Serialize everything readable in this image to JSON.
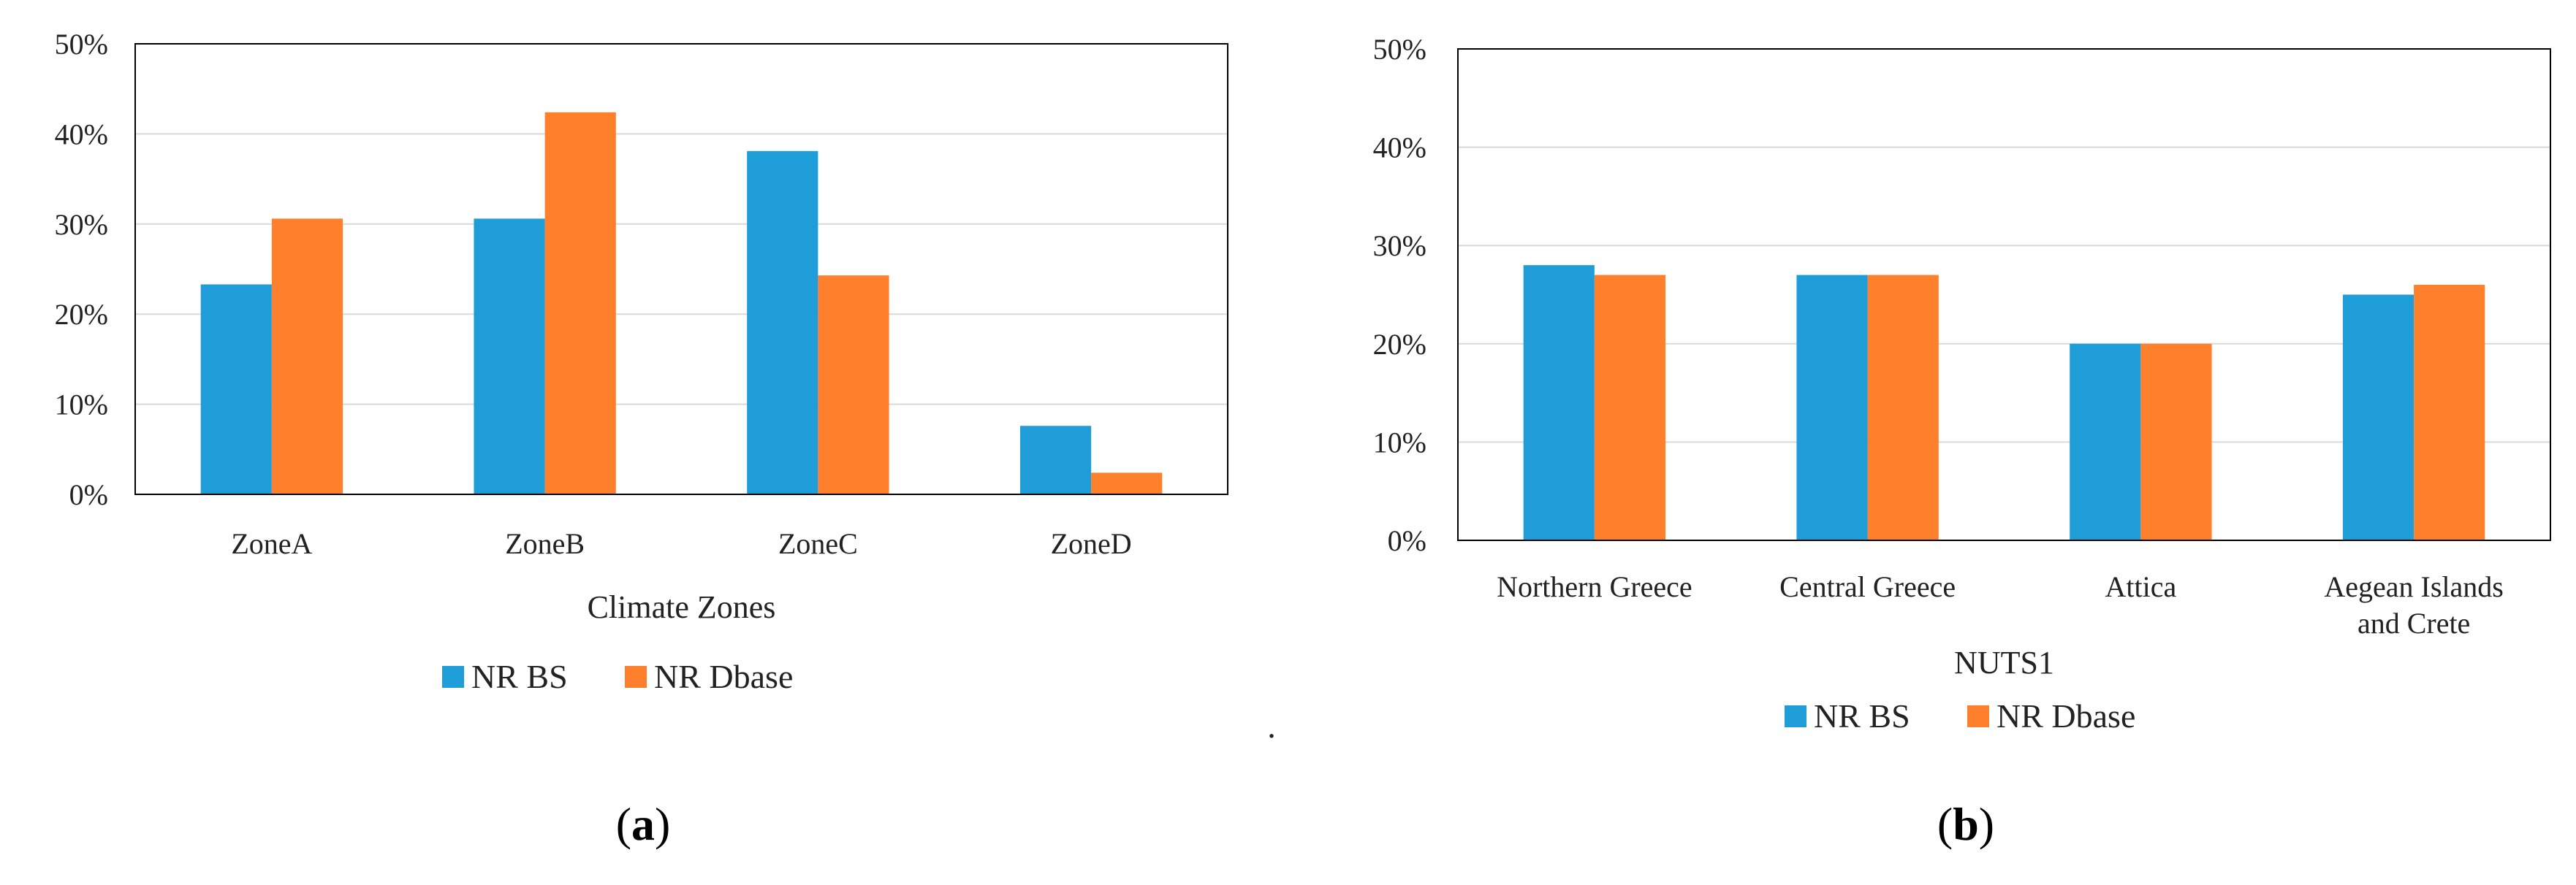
{
  "colors": {
    "nr_bs": "#1f9dd9",
    "nr_dbase": "#fe7f2c",
    "grid": "#d9d9d9",
    "frame": "#000000"
  },
  "separator_dot": ".",
  "chart_data": [
    {
      "type": "bar",
      "panel_label": {
        "open": "(",
        "letter": "a",
        "close": ")"
      },
      "xlabel": "Climate Zones",
      "ylabel": "",
      "categories": [
        "ZoneA",
        "ZoneB",
        "ZoneC",
        "ZoneD"
      ],
      "ylim": [
        0,
        50
      ],
      "yticks": [
        "0%",
        "10%",
        "20%",
        "30%",
        "40%",
        "50%"
      ],
      "grid": true,
      "legend_position": "bottom",
      "series": [
        {
          "name": "NR BS",
          "values": [
            23.3,
            30.6,
            38.1,
            7.6
          ]
        },
        {
          "name": "NR Dbase",
          "values": [
            30.6,
            42.4,
            24.3,
            2.4
          ]
        }
      ]
    },
    {
      "type": "bar",
      "panel_label": {
        "open": "(",
        "letter": "b",
        "close": ")"
      },
      "xlabel": "NUTS1",
      "ylabel": "",
      "categories": [
        "Northern Greece",
        "Central Greece",
        "Attica",
        "Aegean Islands and Crete"
      ],
      "category_lines": [
        [
          "Northern Greece"
        ],
        [
          "Central Greece"
        ],
        [
          "Attica"
        ],
        [
          "Aegean Islands",
          "and Crete"
        ]
      ],
      "ylim": [
        0,
        50
      ],
      "yticks": [
        "0%",
        "10%",
        "20%",
        "30%",
        "40%",
        "50%"
      ],
      "grid": true,
      "legend_position": "bottom",
      "series": [
        {
          "name": "NR BS",
          "values": [
            28,
            27,
            20,
            25
          ]
        },
        {
          "name": "NR Dbase",
          "values": [
            27,
            27,
            20,
            26
          ]
        }
      ]
    }
  ]
}
